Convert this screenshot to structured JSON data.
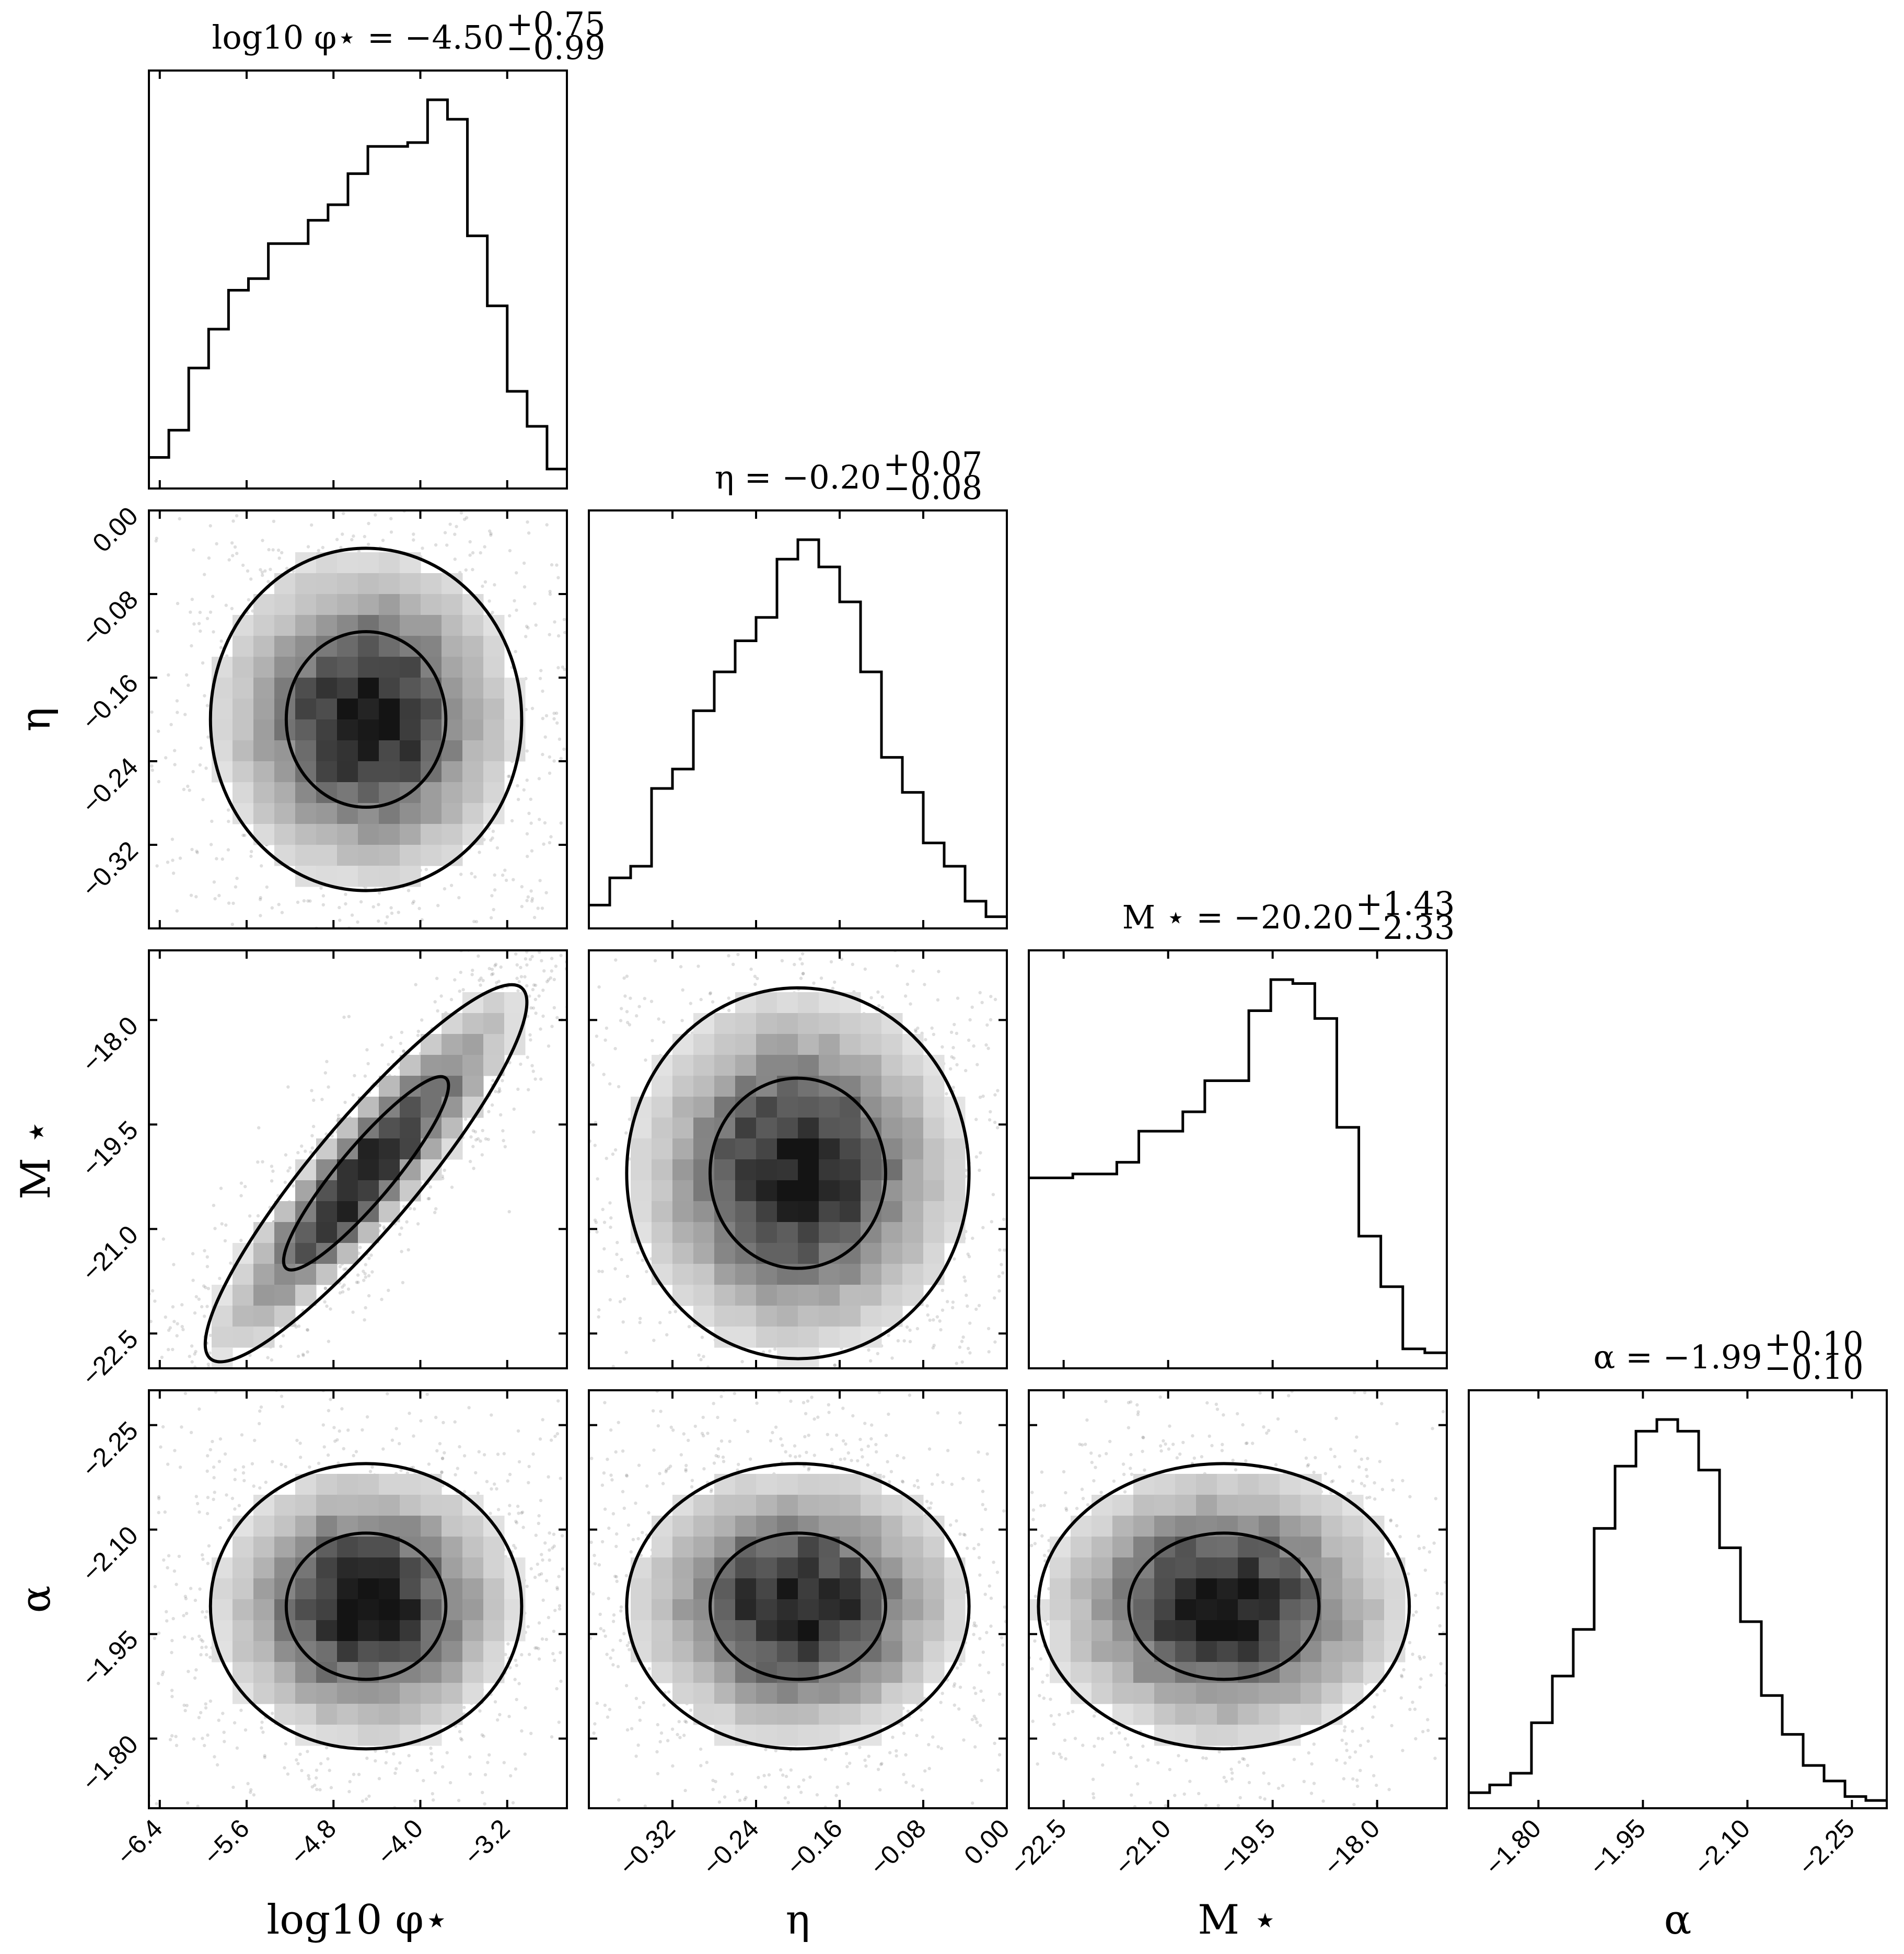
{
  "chart_data": {
    "type": "corner",
    "parameters": [
      {
        "key": "log_phi",
        "axis_label": "log10 φ⋆",
        "title": "log10 φ⋆ = −4.50",
        "title_sup": "+0.75",
        "title_sub": "−0.99",
        "range": [
          -6.5,
          -2.65
        ],
        "ticks": [
          -6.4,
          -5.6,
          -4.8,
          -4.0,
          -3.2
        ],
        "tick_labels": [
          "−6.4",
          "−5.6",
          "−4.8",
          "−4.0",
          "−3.2"
        ],
        "hist_edges": [
          -6.5,
          -2.65
        ],
        "hist_values": [
          0.08,
          0.15,
          0.31,
          0.41,
          0.51,
          0.54,
          0.63,
          0.63,
          0.69,
          0.73,
          0.81,
          0.88,
          0.88,
          0.89,
          1.0,
          0.95,
          0.65,
          0.47,
          0.25,
          0.16,
          0.05
        ]
      },
      {
        "key": "eta",
        "axis_label": "η",
        "title": "η = −0.20",
        "title_sup": "+0.07",
        "title_sub": "−0.08",
        "range": [
          -0.4,
          0.0
        ],
        "ticks": [
          -0.32,
          -0.24,
          -0.16,
          -0.08,
          0.0
        ],
        "tick_labels": [
          "−0.32",
          "−0.24",
          "−0.16",
          "−0.08",
          "0.00"
        ],
        "hist_edges": [
          -0.4,
          0.0
        ],
        "hist_values": [
          0.06,
          0.13,
          0.16,
          0.36,
          0.41,
          0.56,
          0.66,
          0.74,
          0.8,
          0.95,
          1.0,
          0.93,
          0.84,
          0.66,
          0.44,
          0.35,
          0.22,
          0.16,
          0.07,
          0.03
        ]
      },
      {
        "key": "M_star",
        "axis_label": "M ⋆",
        "title": "M ⋆ = −20.20",
        "title_sup": "+1.43",
        "title_sub": "−2.33",
        "range": [
          -23.0,
          -17.0
        ],
        "ticks": [
          -22.5,
          -21.0,
          -19.5,
          -18.0
        ],
        "tick_labels": [
          "−22.5",
          "−21.0",
          "−19.5",
          "−18.0"
        ],
        "hist_edges": [
          -23.0,
          -17.0
        ],
        "hist_values": [
          0.49,
          0.49,
          0.5,
          0.5,
          0.53,
          0.61,
          0.61,
          0.66,
          0.74,
          0.74,
          0.92,
          1.0,
          0.99,
          0.9,
          0.62,
          0.34,
          0.21,
          0.05,
          0.04
        ]
      },
      {
        "key": "alpha",
        "axis_label": "α",
        "title": "α = −1.99",
        "title_sup": "+0.10",
        "title_sub": "−0.10",
        "range": [
          -1.7,
          -2.3
        ],
        "ticks": [
          -1.8,
          -1.95,
          -2.1,
          -2.25
        ],
        "tick_labels": [
          "−1.80",
          "−1.95",
          "−2.10",
          "−2.25"
        ],
        "hist_edges": [
          -1.7,
          -2.3
        ],
        "hist_values": [
          0.04,
          0.06,
          0.09,
          0.22,
          0.34,
          0.46,
          0.72,
          0.88,
          0.97,
          1.0,
          0.97,
          0.87,
          0.67,
          0.48,
          0.29,
          0.19,
          0.11,
          0.07,
          0.03,
          0.02
        ]
      }
    ],
    "pairs": [
      {
        "row": 1,
        "col": 0,
        "correlation": 0.15,
        "mean_x": -4.5,
        "mean_y": -0.2,
        "sd_x": 0.7,
        "sd_y": 0.08
      },
      {
        "row": 2,
        "col": 0,
        "correlation": 0.97,
        "mean_x": -4.5,
        "mean_y": -20.2,
        "sd_x": 0.7,
        "sd_y": 1.3
      },
      {
        "row": 2,
        "col": 1,
        "correlation": 0.1,
        "mean_x": -0.2,
        "mean_y": -20.2,
        "sd_x": 0.08,
        "sd_y": 1.3
      },
      {
        "row": 3,
        "col": 0,
        "correlation": 0.05,
        "mean_x": -4.5,
        "mean_y": -1.99,
        "sd_x": 0.7,
        "sd_y": 0.1
      },
      {
        "row": 3,
        "col": 1,
        "correlation": 0.0,
        "mean_x": -0.2,
        "mean_y": -1.99,
        "sd_x": 0.08,
        "sd_y": 0.1
      },
      {
        "row": 3,
        "col": 2,
        "correlation": 0.05,
        "mean_x": -20.2,
        "mean_y": -1.99,
        "sd_x": 1.3,
        "sd_y": 0.1
      }
    ],
    "contour_levels": [
      "1σ",
      "2σ"
    ],
    "grid": false,
    "legend": "none"
  }
}
